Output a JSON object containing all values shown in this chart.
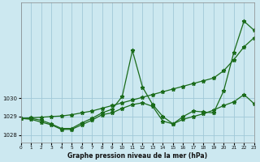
{
  "background_color": "#cce8f0",
  "grid_color": "#a0c8d8",
  "line_color": "#1a6b1a",
  "xlabel": "Graphe pression niveau de la mer (hPa)",
  "xlim": [
    0,
    23
  ],
  "ylim": [
    1027.6,
    1035.2
  ],
  "yticks": [
    1028,
    1029,
    1030
  ],
  "xticks": [
    0,
    1,
    2,
    3,
    4,
    5,
    6,
    7,
    8,
    9,
    10,
    11,
    12,
    13,
    14,
    15,
    16,
    17,
    18,
    19,
    20,
    21,
    22,
    23
  ],
  "series": {
    "line_trend": {
      "x": [
        0,
        1,
        2,
        3,
        4,
        5,
        6,
        7,
        8,
        9,
        10,
        11,
        12,
        13,
        14,
        15,
        16,
        17,
        18,
        19,
        20,
        21,
        22,
        23
      ],
      "y": [
        1028.9,
        1028.93,
        1028.96,
        1029.0,
        1029.03,
        1029.1,
        1029.2,
        1029.3,
        1029.45,
        1029.6,
        1029.75,
        1029.9,
        1030.05,
        1030.2,
        1030.35,
        1030.5,
        1030.65,
        1030.8,
        1030.95,
        1031.1,
        1031.5,
        1032.1,
        1032.8,
        1033.3
      ]
    },
    "line_peak": {
      "x": [
        0,
        1,
        2,
        3,
        4,
        5,
        6,
        7,
        8,
        9,
        10,
        11,
        12,
        13,
        14,
        15,
        16,
        17,
        18,
        19,
        20,
        21,
        22,
        23
      ],
      "y": [
        1028.9,
        1028.9,
        1028.8,
        1028.6,
        1028.35,
        1028.35,
        1028.65,
        1028.9,
        1029.2,
        1029.4,
        1030.1,
        1032.6,
        1030.6,
        1029.65,
        1029.0,
        1028.6,
        1029.0,
        1029.3,
        1029.25,
        1029.2,
        1030.4,
        1032.5,
        1034.2,
        1033.7
      ]
    },
    "line_dip": {
      "x": [
        0,
        1,
        2,
        3,
        4,
        5,
        6,
        7,
        8,
        9,
        10,
        11,
        12,
        13,
        14,
        15,
        16,
        17,
        18,
        19,
        20,
        21,
        22,
        23
      ],
      "y": [
        1028.9,
        1028.85,
        1028.7,
        1028.55,
        1028.3,
        1028.3,
        1028.55,
        1028.8,
        1029.1,
        1029.2,
        1029.45,
        1029.65,
        1029.75,
        1029.55,
        1028.75,
        1028.6,
        1028.85,
        1029.0,
        1029.15,
        1029.35,
        1029.6,
        1029.8,
        1030.2,
        1029.7
      ]
    }
  },
  "marker": "*",
  "markersize": 3.5,
  "linewidth": 0.9
}
